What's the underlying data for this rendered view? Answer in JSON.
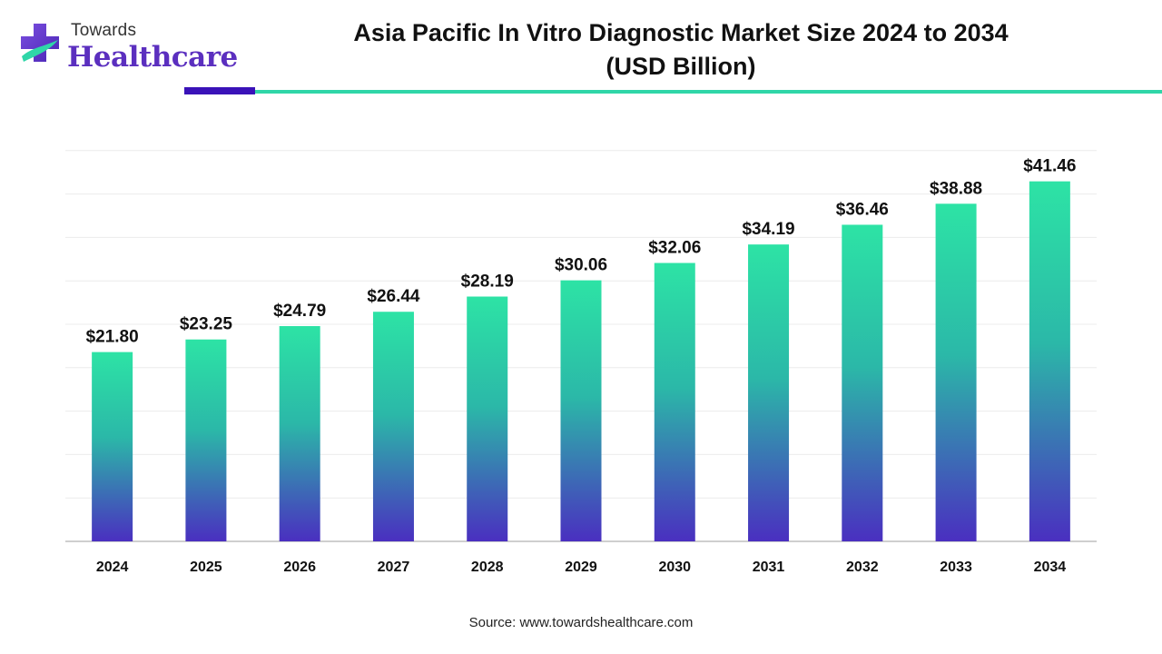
{
  "brand": {
    "line1": "Towards",
    "line2": "Healthcare",
    "accent_purple": "#5b2fbf",
    "accent_teal": "#2fd6a8",
    "icon": "medical-cross-icon"
  },
  "header": {
    "title_line1": "Asia Pacific In Vitro Diagnostic Market Size 2024 to 2034",
    "title_line2": "(USD Billion)"
  },
  "footer": {
    "source": "Source: www.towardshealthcare.com"
  },
  "chart_data": {
    "type": "bar",
    "title": "Asia Pacific In Vitro Diagnostic Market Size 2024 to 2034 (USD Billion)",
    "categories": [
      "2024",
      "2025",
      "2026",
      "2027",
      "2028",
      "2029",
      "2030",
      "2031",
      "2032",
      "2033",
      "2034"
    ],
    "values": [
      21.8,
      23.25,
      24.79,
      26.44,
      28.19,
      30.06,
      32.06,
      34.19,
      36.46,
      38.88,
      41.46
    ],
    "value_labels": [
      "$21.80",
      "$23.25",
      "$24.79",
      "$26.44",
      "$28.19",
      "$30.06",
      "$32.06",
      "$34.19",
      "$36.46",
      "$38.88",
      "$41.46"
    ],
    "ylim": [
      0,
      45
    ],
    "grid": true,
    "legend": "none",
    "bar_gradient": {
      "top": "#2de3a5",
      "bottom": "#4a2fc0"
    }
  }
}
